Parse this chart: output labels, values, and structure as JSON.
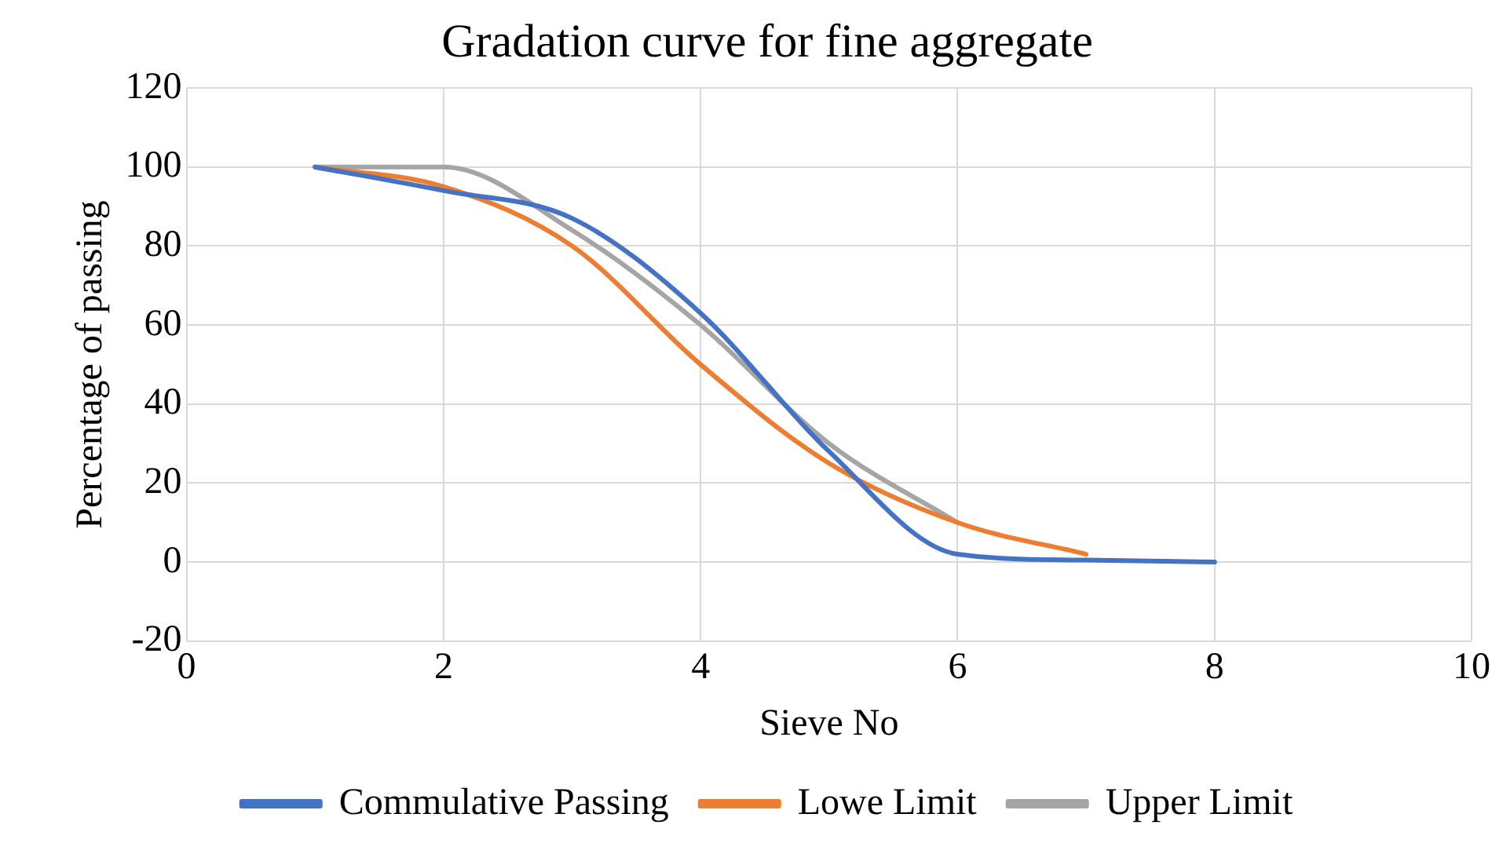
{
  "chart_data": {
    "type": "line",
    "title": "Gradation curve for fine aggregate",
    "xlabel": "Sieve No",
    "ylabel": "Percentage of passing",
    "xlim": [
      0,
      10
    ],
    "xticks": [
      0,
      2,
      4,
      6,
      8,
      10
    ],
    "ylim": [
      -20,
      120
    ],
    "yticks": [
      -20,
      0,
      20,
      40,
      60,
      80,
      100,
      120
    ],
    "grid": true,
    "legend": "bottom",
    "marker": "none",
    "line_style": "solid",
    "series": [
      {
        "name": "Commulative Passing",
        "color": "#4472c4",
        "x": [
          1,
          2,
          3,
          4,
          5,
          6,
          7,
          8
        ],
        "values": [
          100,
          94,
          87,
          63,
          28,
          2,
          0.5,
          0
        ]
      },
      {
        "name": "Lowe Limit",
        "color": "#ed7d31",
        "x": [
          1,
          2,
          3,
          4,
          5,
          6,
          7
        ],
        "values": [
          100,
          95,
          80,
          50,
          25,
          10,
          2
        ]
      },
      {
        "name": "Upper Limit",
        "color": "#a5a5a5",
        "x": [
          1,
          2,
          3,
          4,
          5,
          6
        ],
        "values": [
          100,
          100,
          84,
          60,
          30,
          10
        ]
      }
    ]
  }
}
